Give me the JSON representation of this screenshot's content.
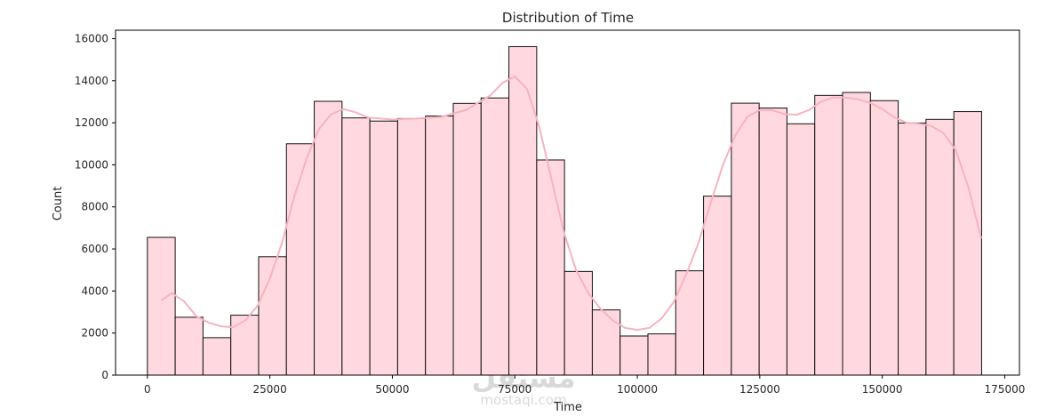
{
  "chart_data": {
    "type": "bar",
    "title": "Distribution of Time",
    "xlabel": "Time",
    "ylabel": "Count",
    "xlim": [
      -6500,
      178000
    ],
    "ylim": [
      0,
      16400
    ],
    "xticks": [
      0,
      25000,
      50000,
      75000,
      100000,
      125000,
      150000,
      175000
    ],
    "yticks": [
      0,
      2000,
      4000,
      6000,
      8000,
      10000,
      12000,
      14000,
      16000
    ],
    "bin_start": 0,
    "bin_width": 5676,
    "grid": false,
    "legend": "none",
    "bar_color": "#ffd9df",
    "edge_color": "#111111",
    "kde_color": "#f6b3c0",
    "bins": [
      {
        "x_start": 0,
        "x_end": 5676,
        "count": 6550
      },
      {
        "x_start": 5676,
        "x_end": 11352,
        "count": 2750
      },
      {
        "x_start": 11352,
        "x_end": 17028,
        "count": 1780
      },
      {
        "x_start": 17028,
        "x_end": 22704,
        "count": 2850
      },
      {
        "x_start": 22704,
        "x_end": 28380,
        "count": 5630
      },
      {
        "x_start": 28380,
        "x_end": 34056,
        "count": 11000
      },
      {
        "x_start": 34056,
        "x_end": 39732,
        "count": 13020
      },
      {
        "x_start": 39732,
        "x_end": 45408,
        "count": 12230
      },
      {
        "x_start": 45408,
        "x_end": 51084,
        "count": 12080
      },
      {
        "x_start": 51084,
        "x_end": 56760,
        "count": 12200
      },
      {
        "x_start": 56760,
        "x_end": 62436,
        "count": 12320
      },
      {
        "x_start": 62436,
        "x_end": 68112,
        "count": 12920
      },
      {
        "x_start": 68112,
        "x_end": 73788,
        "count": 13180
      },
      {
        "x_start": 73788,
        "x_end": 79464,
        "count": 15620
      },
      {
        "x_start": 79464,
        "x_end": 85140,
        "count": 10230
      },
      {
        "x_start": 85140,
        "x_end": 90816,
        "count": 4930
      },
      {
        "x_start": 90816,
        "x_end": 96492,
        "count": 3100
      },
      {
        "x_start": 96492,
        "x_end": 102168,
        "count": 1860
      },
      {
        "x_start": 102168,
        "x_end": 107844,
        "count": 1960
      },
      {
        "x_start": 107844,
        "x_end": 113520,
        "count": 4960
      },
      {
        "x_start": 113520,
        "x_end": 119196,
        "count": 8510
      },
      {
        "x_start": 119196,
        "x_end": 124872,
        "count": 12930
      },
      {
        "x_start": 124872,
        "x_end": 130548,
        "count": 12700
      },
      {
        "x_start": 130548,
        "x_end": 136224,
        "count": 11950
      },
      {
        "x_start": 136224,
        "x_end": 141900,
        "count": 13300
      },
      {
        "x_start": 141900,
        "x_end": 147576,
        "count": 13440
      },
      {
        "x_start": 147576,
        "x_end": 153252,
        "count": 13050
      },
      {
        "x_start": 153252,
        "x_end": 158928,
        "count": 11990
      },
      {
        "x_start": 158928,
        "x_end": 164604,
        "count": 12160
      },
      {
        "x_start": 164604,
        "x_end": 170280,
        "count": 12530
      }
    ],
    "kde": {
      "x": [
        2800,
        5000,
        7500,
        10000,
        12500,
        15000,
        17500,
        20000,
        22500,
        25000,
        27500,
        30000,
        32500,
        35000,
        37500,
        40000,
        42500,
        45000,
        50000,
        55000,
        60000,
        65000,
        70000,
        72500,
        75000,
        77500,
        80000,
        82500,
        85000,
        87500,
        90000,
        92500,
        95000,
        97500,
        100000,
        102500,
        105000,
        107500,
        110000,
        112500,
        115000,
        117500,
        120000,
        122500,
        125000,
        127500,
        130000,
        132500,
        135000,
        137500,
        140000,
        142500,
        145000,
        147500,
        150000,
        152500,
        155000,
        157500,
        160000,
        162500,
        165000,
        167500,
        170200
      ],
      "y": [
        3550,
        3900,
        3500,
        2800,
        2500,
        2320,
        2280,
        2600,
        3300,
        4600,
        6300,
        8500,
        10300,
        11700,
        12400,
        12650,
        12500,
        12250,
        12150,
        12200,
        12280,
        12600,
        13300,
        13900,
        14200,
        13600,
        11800,
        9300,
        6800,
        5000,
        3900,
        3150,
        2600,
        2250,
        2150,
        2250,
        2700,
        3500,
        4800,
        6300,
        8200,
        10000,
        11400,
        12300,
        12600,
        12600,
        12420,
        12380,
        12600,
        13000,
        13200,
        13200,
        13120,
        12950,
        12650,
        12250,
        12000,
        11950,
        11850,
        11500,
        10700,
        9000,
        6500
      ]
    }
  },
  "watermark": {
    "logo_text": "مستقل",
    "url_text": "mostaqi.com"
  }
}
